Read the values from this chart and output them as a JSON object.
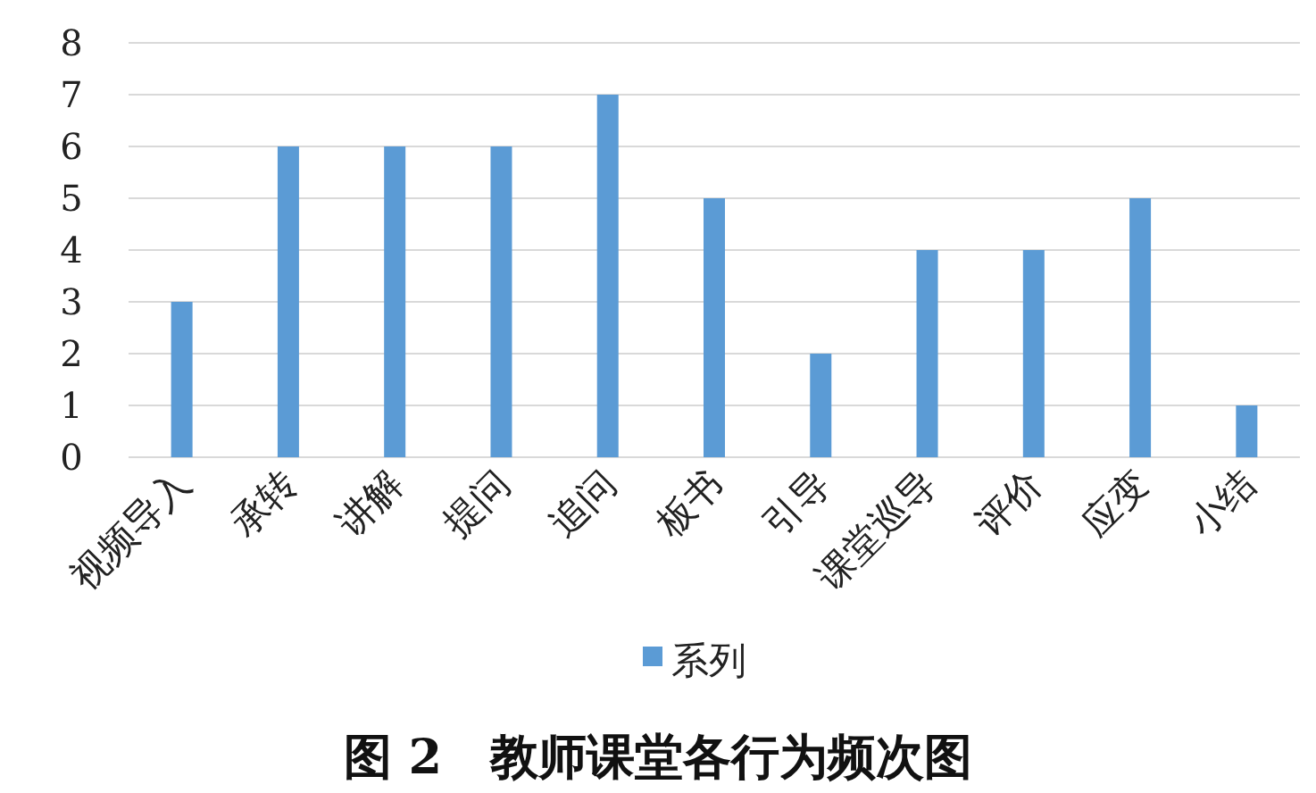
{
  "chart_data": {
    "type": "bar",
    "title": "图 2　教师课堂各行为频次图",
    "categories": [
      "视频导入",
      "承转",
      "讲解",
      "提问",
      "追问",
      "板书",
      "引导",
      "课堂巡导",
      "评价",
      "应变",
      "小结"
    ],
    "series": [
      {
        "name": "系列",
        "color": "#5b9bd5",
        "values": [
          3,
          6,
          6,
          6,
          7,
          5,
          2,
          4,
          4,
          5,
          1
        ]
      }
    ],
    "ylim": [
      0,
      8
    ],
    "yticks": [
      0,
      1,
      2,
      3,
      4,
      5,
      6,
      7,
      8
    ],
    "grid": "y",
    "legend": "bottom"
  }
}
